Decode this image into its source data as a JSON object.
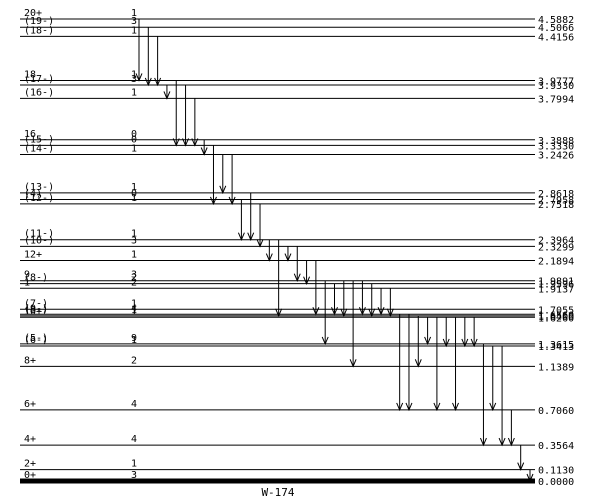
{
  "nucleus": "W-174",
  "levels": [
    {
      "spin": "0+",
      "energy": "0.0000",
      "e": 0.0,
      "n": "3",
      "ground": true
    },
    {
      "spin": "2+",
      "energy": "0.1130",
      "e": 0.113,
      "n": "1"
    },
    {
      "spin": "4+",
      "energy": "0.3564",
      "e": 0.3564,
      "n": "4"
    },
    {
      "spin": "6+",
      "energy": "0.7060",
      "e": 0.706,
      "n": "4"
    },
    {
      "spin": "8+",
      "energy": "1.1389",
      "e": 1.1389,
      "n": "2"
    },
    {
      "spin": "(6-)",
      "energy": "1.3413",
      "e": 1.3413,
      "n": "1"
    },
    {
      "spin": "(5-)",
      "energy": "1.3615",
      "e": 1.3615,
      "n": "9"
    },
    {
      "spin": "10+",
      "energy": "1.6260",
      "e": 1.626,
      "n": "1"
    },
    {
      "spin": "(8-)",
      "energy": "1.6400",
      "e": 1.64,
      "n": "1"
    },
    {
      "spin": "(9-)",
      "energy": "1.6560",
      "e": 1.656,
      "n": "4"
    },
    {
      "spin": "(7-)",
      "energy": "1.7055",
      "e": 1.7055,
      "n": "1"
    },
    {
      "spin": "1",
      "energy": "1.9137",
      "e": 1.9137,
      "n": "2"
    },
    {
      "spin": "(8-)",
      "energy": "1.9596",
      "e": 1.9596,
      "n": "2"
    },
    {
      "spin": "9",
      "energy": "1.9891",
      "e": 1.9891,
      "n": "3"
    },
    {
      "spin": "12+",
      "energy": "2.1894",
      "e": 2.1894,
      "n": "1"
    },
    {
      "spin": "(10-)",
      "energy": "2.3299",
      "e": 2.3299,
      "n": "3"
    },
    {
      "spin": "(11-)",
      "energy": "2.3964",
      "e": 2.3964,
      "n": "1"
    },
    {
      "spin": "(12-)",
      "energy": "2.7518",
      "e": 2.7518,
      "n": "1"
    },
    {
      "spin": "(4)",
      "energy": "2.7958",
      "e": 2.7958,
      "n": "0"
    },
    {
      "spin": "(13-)",
      "energy": "2.8618",
      "e": 2.8618,
      "n": "1"
    },
    {
      "spin": "(14-)",
      "energy": "3.2426",
      "e": 3.2426,
      "n": "1"
    },
    {
      "spin": "(15-)",
      "energy": "3.3330",
      "e": 3.333,
      "n": "0"
    },
    {
      "spin": "16",
      "energy": "3.3888",
      "e": 3.3888,
      "n": "0"
    },
    {
      "spin": "(16-)",
      "energy": "3.7994",
      "e": 3.7994,
      "n": "1"
    },
    {
      "spin": "(17-)",
      "energy": "3.9330",
      "e": 3.933,
      "n": "3"
    },
    {
      "spin": "18",
      "energy": "3.9777",
      "e": 3.9777,
      "n": "1"
    },
    {
      "spin": "(18-)",
      "energy": "4.4156",
      "e": 4.4156,
      "n": "1"
    },
    {
      "spin": "(19-)",
      "energy": "4.5066",
      "e": 4.5066,
      "n": "3"
    },
    {
      "spin": "20+",
      "energy": "4.5882",
      "e": 4.5882,
      "n": "1"
    }
  ],
  "transitions": [
    {
      "from": 4.5882,
      "to": 3.9777
    },
    {
      "from": 4.5066,
      "to": 3.933
    },
    {
      "from": 4.4156,
      "to": 3.933
    },
    {
      "from": 3.933,
      "to": 3.7994
    },
    {
      "from": 3.9777,
      "to": 3.333
    },
    {
      "from": 3.933,
      "to": 3.333
    },
    {
      "from": 3.7994,
      "to": 3.333
    },
    {
      "from": 3.3888,
      "to": 3.2426
    },
    {
      "from": 3.333,
      "to": 2.7518
    },
    {
      "from": 3.2426,
      "to": 2.8618
    },
    {
      "from": 3.2426,
      "to": 2.7518
    },
    {
      "from": 2.7958,
      "to": 2.3964
    },
    {
      "from": 2.8618,
      "to": 2.3964
    },
    {
      "from": 2.7518,
      "to": 2.3299
    },
    {
      "from": 2.3964,
      "to": 2.1894
    },
    {
      "from": 2.3964,
      "to": 1.64
    },
    {
      "from": 2.3299,
      "to": 2.1894
    },
    {
      "from": 2.3299,
      "to": 1.9891
    },
    {
      "from": 2.1894,
      "to": 1.9596
    },
    {
      "from": 2.1894,
      "to": 1.656
    },
    {
      "from": 1.9891,
      "to": 1.3615
    },
    {
      "from": 1.9596,
      "to": 1.656
    },
    {
      "from": 1.9891,
      "to": 1.64
    },
    {
      "from": 1.9891,
      "to": 1.1389
    },
    {
      "from": 1.9891,
      "to": 1.656
    },
    {
      "from": 1.9596,
      "to": 1.64
    },
    {
      "from": 1.9137,
      "to": 1.656
    },
    {
      "from": 1.9137,
      "to": 1.64
    },
    {
      "from": 1.656,
      "to": 0.706
    },
    {
      "from": 1.656,
      "to": 0.706
    },
    {
      "from": 1.64,
      "to": 1.1389
    },
    {
      "from": 1.626,
      "to": 1.3615
    },
    {
      "from": 1.626,
      "to": 0.706
    },
    {
      "from": 1.626,
      "to": 1.3413
    },
    {
      "from": 1.626,
      "to": 0.706
    },
    {
      "from": 1.626,
      "to": 1.3413
    },
    {
      "from": 1.626,
      "to": 1.3413
    },
    {
      "from": 1.3615,
      "to": 0.3564
    },
    {
      "from": 1.3413,
      "to": 0.706
    },
    {
      "from": 1.3413,
      "to": 0.3564
    },
    {
      "from": 0.706,
      "to": 0.3564
    },
    {
      "from": 0.3564,
      "to": 0.113
    },
    {
      "from": 0.113,
      "to": 0.0
    }
  ]
}
